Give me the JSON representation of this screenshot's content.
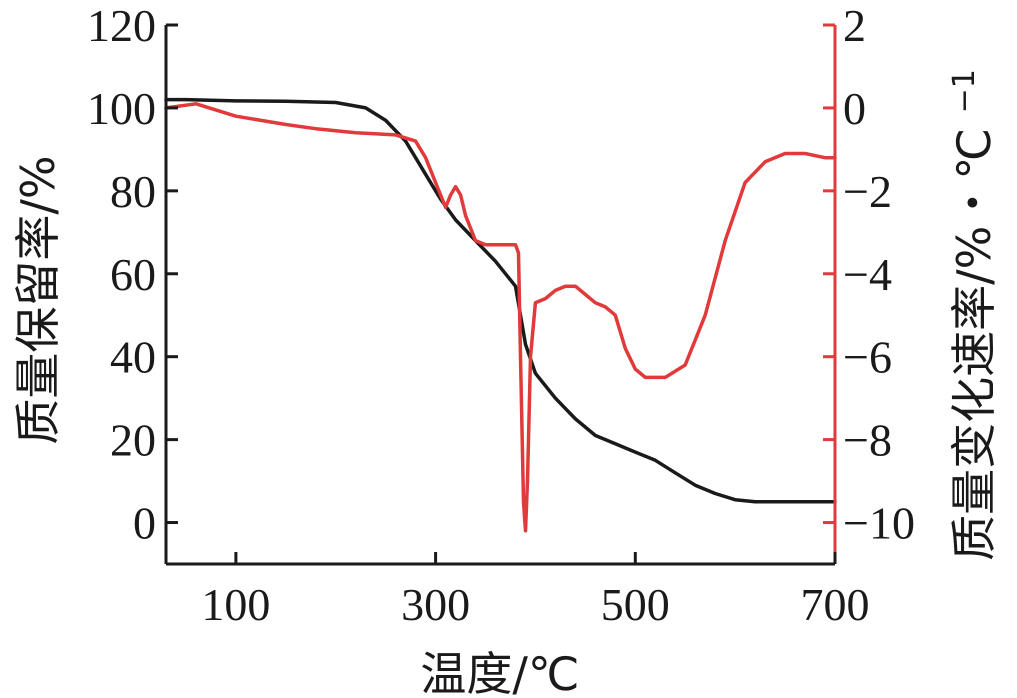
{
  "chart_data": {
    "type": "line",
    "xlabel": "温度/℃",
    "ylabel_left": "质量保留率/%",
    "ylabel_right": "质量变化速率/%・℃",
    "ylabel_right_superscript": "−1",
    "xlim": [
      30,
      700
    ],
    "xticks": [
      100,
      300,
      500,
      700
    ],
    "xtick_labels": [
      "100",
      "300",
      "500",
      "700"
    ],
    "ylim_left": [
      -10,
      120
    ],
    "yticks_left": [
      0,
      20,
      40,
      60,
      80,
      100,
      120
    ],
    "ytick_labels_left": [
      "0",
      "20",
      "40",
      "60",
      "80",
      "100",
      "120"
    ],
    "ylim_right": [
      -11,
      2
    ],
    "yticks_right": [
      -10,
      -8,
      -6,
      -4,
      -2,
      0,
      2
    ],
    "ytick_labels_right": [
      "−10",
      "−8",
      "−6",
      "−4",
      "−2",
      "0",
      "2"
    ],
    "grid": false,
    "colors": {
      "left": "#1a1a1a",
      "right": "#e03a3a"
    },
    "series": [
      {
        "axis": "left",
        "color": "#1a1a1a",
        "x": [
          30,
          50,
          100,
          150,
          200,
          230,
          250,
          270,
          290,
          305,
          320,
          340,
          360,
          380,
          390,
          400,
          420,
          440,
          460,
          480,
          500,
          520,
          540,
          560,
          580,
          600,
          620,
          650,
          680,
          700
        ],
        "y": [
          102,
          102,
          101.7,
          101.6,
          101.3,
          100,
          97,
          92,
          84,
          78,
          73,
          68,
          63,
          57,
          43,
          36,
          30,
          25,
          21,
          19,
          17,
          15,
          12,
          9,
          7,
          5.5,
          5,
          5,
          5,
          5
        ]
      },
      {
        "axis": "right",
        "color": "#e03a3a",
        "x": [
          30,
          60,
          100,
          150,
          180,
          220,
          260,
          280,
          290,
          300,
          310,
          315,
          320,
          325,
          330,
          340,
          350,
          360,
          370,
          380,
          383,
          385,
          388,
          390,
          392,
          395,
          400,
          410,
          420,
          430,
          440,
          450,
          460,
          470,
          480,
          490,
          500,
          510,
          530,
          550,
          570,
          590,
          610,
          630,
          650,
          670,
          690,
          700
        ],
        "y": [
          0,
          0.1,
          -0.2,
          -0.4,
          -0.5,
          -0.6,
          -0.65,
          -0.8,
          -1.2,
          -1.8,
          -2.4,
          -2.1,
          -1.9,
          -2.1,
          -2.6,
          -3.2,
          -3.3,
          -3.3,
          -3.3,
          -3.3,
          -3.5,
          -6.0,
          -9.5,
          -10.2,
          -9.0,
          -6.0,
          -4.7,
          -4.6,
          -4.4,
          -4.3,
          -4.3,
          -4.5,
          -4.7,
          -4.8,
          -5.0,
          -5.8,
          -6.3,
          -6.5,
          -6.5,
          -6.2,
          -5.0,
          -3.2,
          -1.8,
          -1.3,
          -1.1,
          -1.1,
          -1.2,
          -1.2
        ]
      }
    ]
  }
}
